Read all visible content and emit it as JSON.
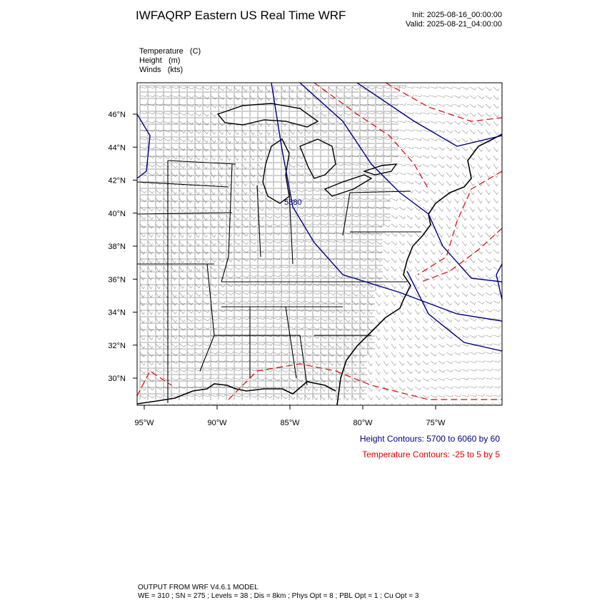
{
  "header": {
    "title": "IWFAQRP Eastern US Real Time WRF",
    "init": "Init: 2025-08-16_00:00:00",
    "valid": "Valid: 2025-08-21_04:00:00"
  },
  "fields": [
    "Temperature   (C)",
    "Height   (m)",
    "Winds   (kts)"
  ],
  "map": {
    "lat_labels": [
      "46°N",
      "44°N",
      "42°N",
      "40°N",
      "38°N",
      "36°N",
      "34°N",
      "32°N",
      "30°N"
    ],
    "lon_labels": [
      "95°W",
      "90°W",
      "85°W",
      "80°W",
      "75°W"
    ],
    "contour_label": "5880"
  },
  "legend": {
    "height": "Height Contours: 5700 to 6060 by 60",
    "temperature": "Temperature Contours: -25 to 5 by 5"
  },
  "footer": {
    "line1": "OUTPUT FROM WRF V4.6.1 MODEL",
    "line2": "WE = 310 ; SN = 275 ; Levels = 38 ; Dis = 8km ; Phys Opt = 8 ; PBL Opt = 1 ; Cu Opt = 3"
  }
}
